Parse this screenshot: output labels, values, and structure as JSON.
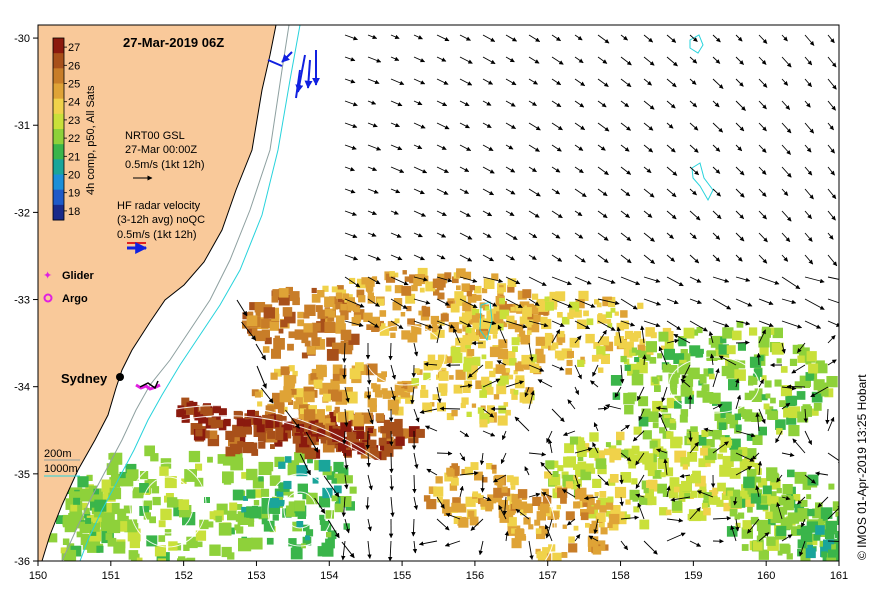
{
  "title": "27-Mar-2019 06Z",
  "credit": "© IMOS 01-Apr-2019 13:25 Hobart",
  "axes": {
    "lon_ticks": [
      "150",
      "151",
      "152",
      "153",
      "154",
      "155",
      "156",
      "157",
      "158",
      "159",
      "160",
      "161"
    ],
    "lat_ticks": [
      "-30",
      "-31",
      "-32",
      "-33",
      "-34",
      "-35",
      "-36"
    ],
    "lon_range": [
      150,
      161
    ],
    "lat_range": [
      -36,
      -29.85
    ]
  },
  "colorbar": {
    "label": "4h comp, p50, All Sats",
    "ticks": [
      "27",
      "26",
      "25",
      "24",
      "23",
      "22",
      "21",
      "20",
      "19",
      "18"
    ],
    "range": [
      17.5,
      27.5
    ],
    "colors": [
      "#8b1a0e",
      "#a8501a",
      "#c87d28",
      "#dfa336",
      "#f0d24a",
      "#c9e03a",
      "#8ed13a",
      "#3ab54a",
      "#1aa59a",
      "#1c8fd8",
      "#1f5ac8",
      "#1a2a8a"
    ]
  },
  "legend": {
    "gsl_title": "NRT00 GSL",
    "gsl_time": "27-Mar 00:00Z",
    "gsl_scale": "0.5m/s (1kt 12h)",
    "hf_title": "HF radar velocity",
    "hf_sub": "(3-12h avg) noQC",
    "hf_scale": "0.5m/s (1kt 12h)",
    "glider": "Glider",
    "argo": "Argo",
    "city": "Sydney",
    "iso_200": "200m",
    "iso_1000": "1000m"
  },
  "colors": {
    "land": "#f9c99a",
    "coast": "#000000",
    "isobath_200": "#8ea0a0",
    "isobath_1000": "#27d3dc",
    "glider": "#e020e0",
    "argo": "#e020e0",
    "hf": "#1020e0",
    "hf_red": "#e02020",
    "sla": "#ffffff"
  }
}
